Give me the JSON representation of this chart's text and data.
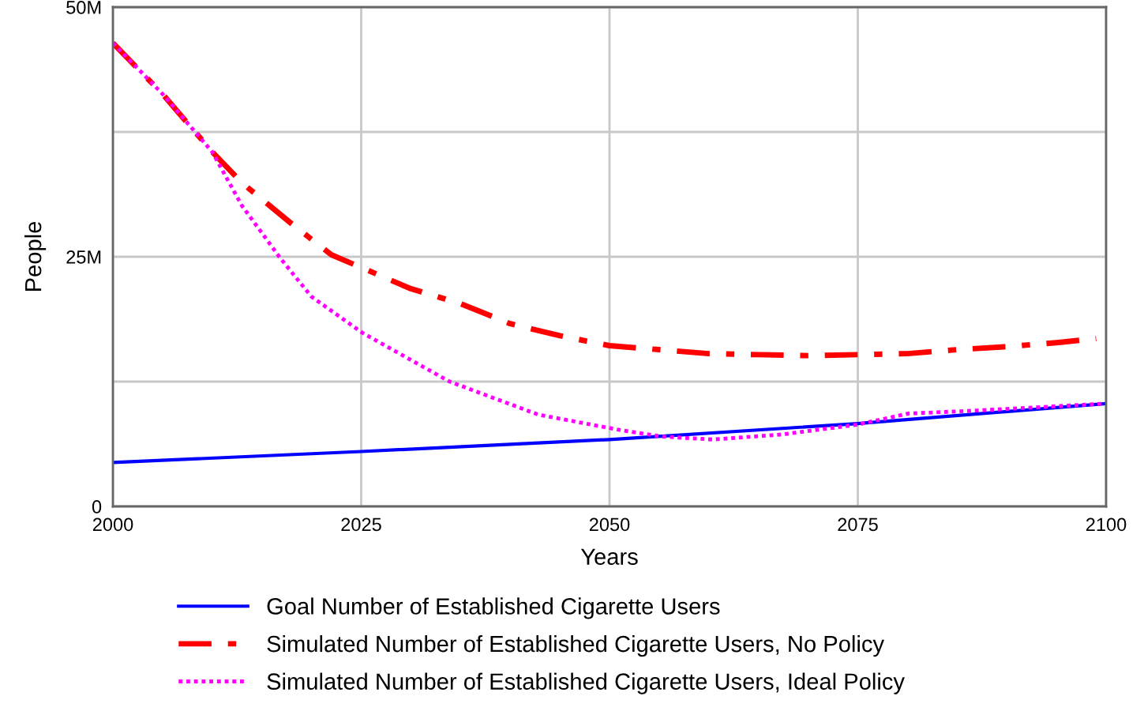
{
  "chart_data": {
    "type": "line",
    "xlabel": "Years",
    "ylabel": "People",
    "xlim": [
      2000,
      2100
    ],
    "xticks": [
      2000,
      2025,
      2050,
      2075,
      2100
    ],
    "ylim": [
      0,
      50
    ],
    "yticks": [
      0,
      {
        "value": 12.5,
        "label": null
      },
      {
        "value": 25,
        "label": "25M"
      },
      {
        "value": 37.5,
        "label": null
      },
      {
        "value": 50,
        "label": "50M"
      }
    ],
    "grid": true,
    "legend": "bottom",
    "series": [
      {
        "name": "Goal Number of Established Cigarette Users",
        "color": "#0000ff",
        "line_style": "solid",
        "x": [
          2000,
          2025,
          2050,
          2075,
          2100
        ],
        "values": [
          4.4,
          5.5,
          6.7,
          8.3,
          10.3
        ]
      },
      {
        "name": "Simulated Number of Established Cigarette Users, No Policy",
        "color": "#ff0000",
        "line_style": "dashed",
        "x": [
          2000,
          2005,
          2010,
          2013,
          2018,
          2022,
          2030,
          2035,
          2040,
          2045,
          2050,
          2055,
          2060,
          2065,
          2070,
          2075,
          2080,
          2085,
          2090,
          2095,
          2099
        ],
        "values": [
          46.4,
          41.3,
          35.5,
          32.4,
          28.3,
          25.2,
          21.8,
          20.3,
          18.3,
          17.1,
          16.1,
          15.7,
          15.3,
          15.2,
          15.1,
          15.2,
          15.3,
          15.7,
          16.0,
          16.4,
          16.8
        ]
      },
      {
        "name": "Simulated Number of Established Cigarette Users, Ideal Policy",
        "color": "#ff00ff",
        "line_style": "dotted",
        "x": [
          2000,
          2005,
          2010,
          2013,
          2016.9,
          2020,
          2025.1,
          2033.9,
          2042.8,
          2050.8,
          2055.2,
          2060.4,
          2067.3,
          2075,
          2080.1,
          2087,
          2100
        ],
        "values": [
          46.4,
          41.3,
          35.5,
          30.1,
          24.8,
          21.0,
          17.4,
          12.5,
          9.2,
          7.7,
          7.0,
          6.7,
          7.2,
          8.2,
          9.3,
          9.6,
          10.3
        ]
      }
    ]
  }
}
